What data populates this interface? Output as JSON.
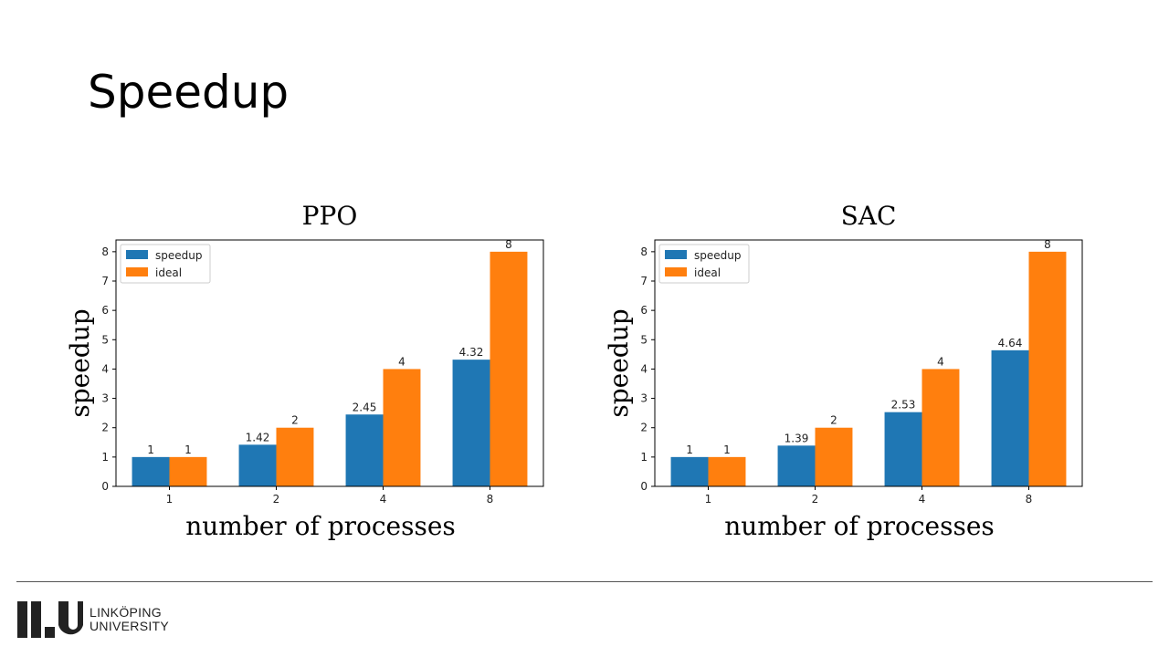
{
  "slide": {
    "title": "Speedup"
  },
  "footer": {
    "logo_line1": "LINKÖPING",
    "logo_line2": "UNIVERSITY"
  },
  "colors": {
    "speedup": "#1f77b4",
    "ideal": "#ff7f0e",
    "axis": "#000000"
  },
  "chart_data": [
    {
      "type": "bar",
      "title": "PPO",
      "xlabel": "number of processes",
      "ylabel": "speedup",
      "categories": [
        "1",
        "2",
        "4",
        "8"
      ],
      "ylim": [
        0,
        8.4
      ],
      "yticks": [
        0,
        1,
        2,
        3,
        4,
        5,
        6,
        7,
        8
      ],
      "legend": "top-left",
      "grid": false,
      "series": [
        {
          "name": "speedup",
          "values": [
            1,
            1.42,
            2.45,
            4.32
          ],
          "labels": [
            "1",
            "1.42",
            "2.45",
            "4.32"
          ]
        },
        {
          "name": "ideal",
          "values": [
            1,
            2,
            4,
            8
          ],
          "labels": [
            "1",
            "2",
            "4",
            "8"
          ]
        }
      ]
    },
    {
      "type": "bar",
      "title": "SAC",
      "xlabel": "number of processes",
      "ylabel": "speedup",
      "categories": [
        "1",
        "2",
        "4",
        "8"
      ],
      "ylim": [
        0,
        8.4
      ],
      "yticks": [
        0,
        1,
        2,
        3,
        4,
        5,
        6,
        7,
        8
      ],
      "legend": "top-left",
      "grid": false,
      "series": [
        {
          "name": "speedup",
          "values": [
            1,
            1.39,
            2.53,
            4.64
          ],
          "labels": [
            "1",
            "1.39",
            "2.53",
            "4.64"
          ]
        },
        {
          "name": "ideal",
          "values": [
            1,
            2,
            4,
            8
          ],
          "labels": [
            "1",
            "2",
            "4",
            "8"
          ]
        }
      ]
    }
  ]
}
